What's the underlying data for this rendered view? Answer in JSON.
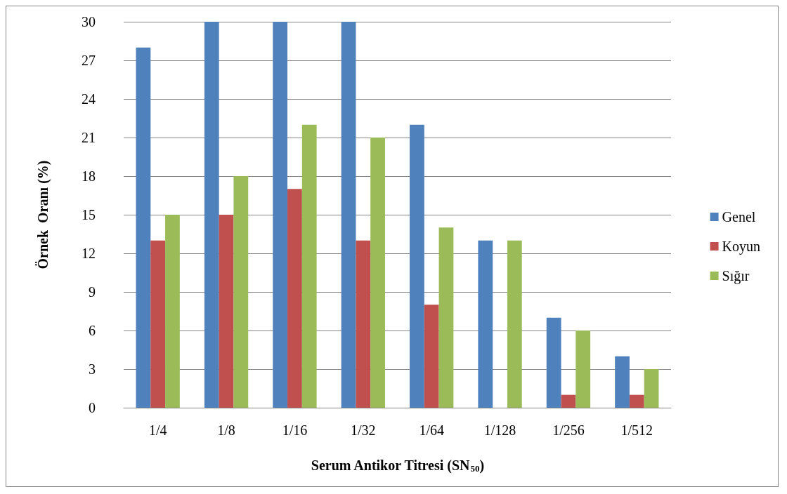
{
  "chart_data": {
    "type": "bar",
    "xlabel": "Serum Antikor Titresi (SN$_{50}$)",
    "ylabel": "Örnek  Oranı (%)",
    "categories": [
      "1/4",
      "1/8",
      "1/16",
      "1/32",
      "1/64",
      "1/128",
      "1/256",
      "1/512"
    ],
    "series": [
      {
        "name": "Genel",
        "color": "#4f81bd",
        "values": [
          28,
          30,
          30,
          30,
          22,
          13,
          7,
          4
        ]
      },
      {
        "name": "Koyun",
        "color": "#c0504d",
        "values": [
          13,
          15,
          17,
          13,
          8,
          0,
          1,
          1
        ]
      },
      {
        "name": "Sığır",
        "color": "#9bbb59",
        "values": [
          15,
          18,
          22,
          21,
          14,
          13,
          6,
          3
        ]
      }
    ],
    "ylim": [
      0,
      30
    ],
    "yticks": [
      0,
      3,
      6,
      9,
      12,
      15,
      18,
      21,
      24,
      27,
      30
    ],
    "grid": "y",
    "legend": "right"
  }
}
